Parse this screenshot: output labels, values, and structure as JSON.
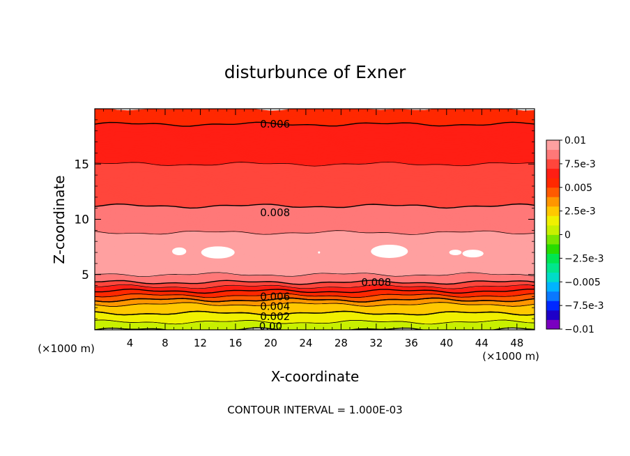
{
  "chart_data": {
    "type": "heatmap",
    "title": "disturbunce of Exner",
    "xlabel": "X-coordinate",
    "ylabel": "Z-coordinate",
    "x_unit": "(×1000 m)",
    "y_unit": "(×1000 m)",
    "footnote": "CONTOUR INTERVAL = 1.000E-03",
    "xlim": [
      0,
      50
    ],
    "ylim": [
      0,
      20
    ],
    "x_ticks": [
      4,
      8,
      12,
      16,
      20,
      24,
      28,
      32,
      36,
      40,
      44,
      48
    ],
    "y_ticks": [
      5,
      10,
      15
    ],
    "contour_interval": 0.001,
    "colorbar": {
      "range": [
        -0.01,
        0.01
      ],
      "tick_values": [
        0.01,
        0.0075,
        0.005,
        0.0025,
        0,
        -0.0025,
        -0.005,
        -0.0075,
        -0.01
      ],
      "tick_labels": [
        "0.01",
        "7.5e-3",
        "0.005",
        "2.5e-3",
        "0",
        "−2.5e-3",
        "−0.005",
        "−7.5e-3",
        "−0.01"
      ],
      "colors": [
        "#7a00c0",
        "#1e00c8",
        "#0028ff",
        "#0a78ff",
        "#00b4ff",
        "#00dcc8",
        "#00e68c",
        "#00e650",
        "#28dc00",
        "#78e600",
        "#c8f000",
        "#f0f000",
        "#ffc800",
        "#ff9600",
        "#ff5a00",
        "#ff2800",
        "#ff1e14",
        "#ff463c",
        "#ff7878",
        "#ffa0a0"
      ]
    },
    "contour_labels": [
      {
        "text": "0.006",
        "x": 20.5,
        "z": 18.6
      },
      {
        "text": "0.008",
        "x": 20.5,
        "z": 10.6
      },
      {
        "text": "0.008",
        "x": 32,
        "z": 4.3
      },
      {
        "text": "0.006",
        "x": 20.5,
        "z": 3.0
      },
      {
        "text": "0.004",
        "x": 20.5,
        "z": 2.1
      },
      {
        "text": "0.002",
        "x": 20.5,
        "z": 1.2
      },
      {
        "text": "0.00",
        "x": 20,
        "z": 0.3
      }
    ],
    "vertical_profile": {
      "z": [
        0,
        0.3,
        0.7,
        1.1,
        1.5,
        1.9,
        2.3,
        2.7,
        3.1,
        3.5,
        3.9,
        4.3,
        5,
        6,
        7.2,
        8.6,
        9.8,
        11.2,
        13,
        15,
        16.8,
        18.6,
        20
      ],
      "value": [
        0.0,
        0.0005,
        0.001,
        0.0015,
        0.002,
        0.0025,
        0.003,
        0.004,
        0.005,
        0.006,
        0.007,
        0.008,
        0.009,
        0.0093,
        0.0096,
        0.0091,
        0.0085,
        0.008,
        0.0075,
        0.007,
        0.0065,
        0.006,
        0.0055
      ]
    },
    "local_maxima": [
      {
        "x": 9.6,
        "z": 7.1,
        "rx": 0.8,
        "rz": 0.35
      },
      {
        "x": 14.0,
        "z": 7.0,
        "rx": 1.9,
        "rz": 0.55
      },
      {
        "x": 33.5,
        "z": 7.1,
        "rx": 2.1,
        "rz": 0.6
      },
      {
        "x": 41.0,
        "z": 7.0,
        "rx": 0.7,
        "rz": 0.25
      },
      {
        "x": 43.0,
        "z": 6.9,
        "rx": 1.2,
        "rz": 0.35
      },
      {
        "x": 25.5,
        "z": 7.0,
        "rx": 0.12,
        "rz": 0.1
      }
    ]
  }
}
